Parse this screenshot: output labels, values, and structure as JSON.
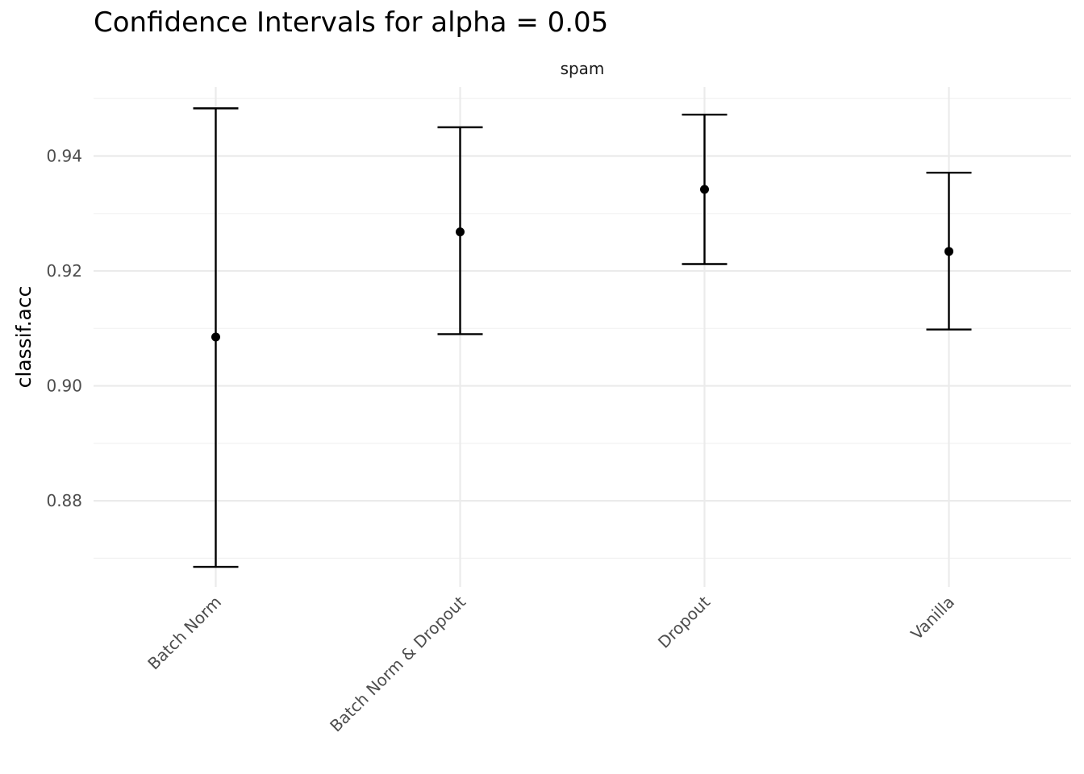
{
  "chart_data": {
    "type": "errorbar",
    "title": "Confidence Intervals for alpha = 0.05",
    "facet_label": "spam",
    "xlabel": "",
    "ylabel": "classif.acc",
    "ylim": [
      0.865,
      0.952
    ],
    "y_ticks": [
      0.88,
      0.9,
      0.92,
      0.94
    ],
    "y_tick_labels": [
      "0.88",
      "0.90",
      "0.92",
      "0.94"
    ],
    "grid": true,
    "categories": [
      "Batch Norm",
      "Batch Norm & Dropout",
      "Dropout",
      "Vanilla"
    ],
    "estimate": [
      0.9085,
      0.9268,
      0.9342,
      0.9234
    ],
    "lower": [
      0.8685,
      0.909,
      0.9212,
      0.9098
    ],
    "upper": [
      0.9483,
      0.945,
      0.9472,
      0.9371
    ]
  }
}
